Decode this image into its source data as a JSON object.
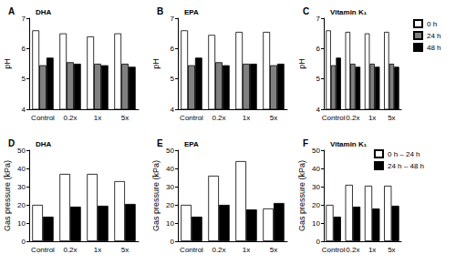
{
  "chart_data": [
    {
      "type": "bar",
      "panel_label": "A",
      "title": "DHA",
      "y_label": "pH",
      "categories": [
        "Control",
        "0.2x",
        "1x",
        "5x"
      ],
      "series": [
        {
          "name": "0 h",
          "color": "#ffffff",
          "values": [
            6.6,
            6.5,
            6.4,
            6.5
          ]
        },
        {
          "name": "24 h",
          "color": "#808080",
          "values": [
            5.45,
            5.55,
            5.5,
            5.5
          ]
        },
        {
          "name": "48 h",
          "color": "#000000",
          "values": [
            5.7,
            5.5,
            5.45,
            5.4
          ]
        }
      ],
      "ylim": [
        4,
        7
      ],
      "yticks": [
        4,
        5,
        6,
        7
      ],
      "grid": false
    },
    {
      "type": "bar",
      "panel_label": "B",
      "title": "EPA",
      "y_label": "pH",
      "categories": [
        "Control",
        "0.2x",
        "1x",
        "5x"
      ],
      "series": [
        {
          "name": "0 h",
          "color": "#ffffff",
          "values": [
            6.6,
            6.45,
            6.55,
            6.55
          ]
        },
        {
          "name": "24 h",
          "color": "#808080",
          "values": [
            5.45,
            5.55,
            5.5,
            5.45
          ]
        },
        {
          "name": "48 h",
          "color": "#000000",
          "values": [
            5.7,
            5.45,
            5.5,
            5.5
          ]
        }
      ],
      "ylim": [
        4,
        7
      ],
      "yticks": [
        4,
        5,
        6,
        7
      ],
      "grid": false
    },
    {
      "type": "bar",
      "panel_label": "C",
      "title": "Vitamin K₁",
      "y_label": "pH",
      "categories": [
        "Control",
        "0.2x",
        "1x",
        "5x"
      ],
      "series": [
        {
          "name": "0 h",
          "color": "#ffffff",
          "values": [
            6.6,
            6.55,
            6.5,
            6.55
          ]
        },
        {
          "name": "24 h",
          "color": "#808080",
          "values": [
            5.45,
            5.5,
            5.5,
            5.5
          ]
        },
        {
          "name": "48 h",
          "color": "#000000",
          "values": [
            5.7,
            5.4,
            5.4,
            5.4
          ]
        }
      ],
      "ylim": [
        4,
        7
      ],
      "yticks": [
        4,
        5,
        6,
        7
      ],
      "grid": false,
      "legend": "right"
    },
    {
      "type": "bar",
      "panel_label": "D",
      "title": "DHA",
      "y_label": "Gas pressure (kPa)",
      "categories": [
        "Control",
        "0.2x",
        "1x",
        "5x"
      ],
      "series": [
        {
          "name": "0 h – 24 h",
          "color": "#ffffff",
          "values": [
            20,
            37,
            37,
            33
          ]
        },
        {
          "name": "24 h – 48 h",
          "color": "#000000",
          "values": [
            13.5,
            19,
            19.5,
            20.5
          ]
        }
      ],
      "ylim": [
        0,
        50
      ],
      "yticks": [
        0,
        10,
        20,
        30,
        40,
        50
      ],
      "grid": false
    },
    {
      "type": "bar",
      "panel_label": "E",
      "title": "EPA",
      "y_label": "Gas pressure (kPa)",
      "categories": [
        "Control",
        "0.2x",
        "1x",
        "5x"
      ],
      "series": [
        {
          "name": "0 h – 24 h",
          "color": "#ffffff",
          "values": [
            20,
            36,
            44,
            18
          ]
        },
        {
          "name": "24 h – 48 h",
          "color": "#000000",
          "values": [
            13.5,
            20,
            17.5,
            21
          ]
        }
      ],
      "ylim": [
        0,
        50
      ],
      "yticks": [
        0,
        10,
        20,
        30,
        40,
        50
      ],
      "grid": false
    },
    {
      "type": "bar",
      "panel_label": "F",
      "title": "Vitamin K₁",
      "y_label": "Gas pressure (kPa)",
      "categories": [
        "Control",
        "0.2x",
        "1x",
        "5x"
      ],
      "series": [
        {
          "name": "0 h – 24 h",
          "color": "#ffffff",
          "values": [
            20,
            31,
            30.5,
            30.5
          ]
        },
        {
          "name": "24 h – 48 h",
          "color": "#000000",
          "values": [
            13.5,
            19,
            18,
            19.5
          ]
        }
      ],
      "ylim": [
        0,
        50
      ],
      "yticks": [
        0,
        10,
        20,
        30,
        40,
        50
      ],
      "grid": false,
      "legend": "upper right"
    }
  ]
}
